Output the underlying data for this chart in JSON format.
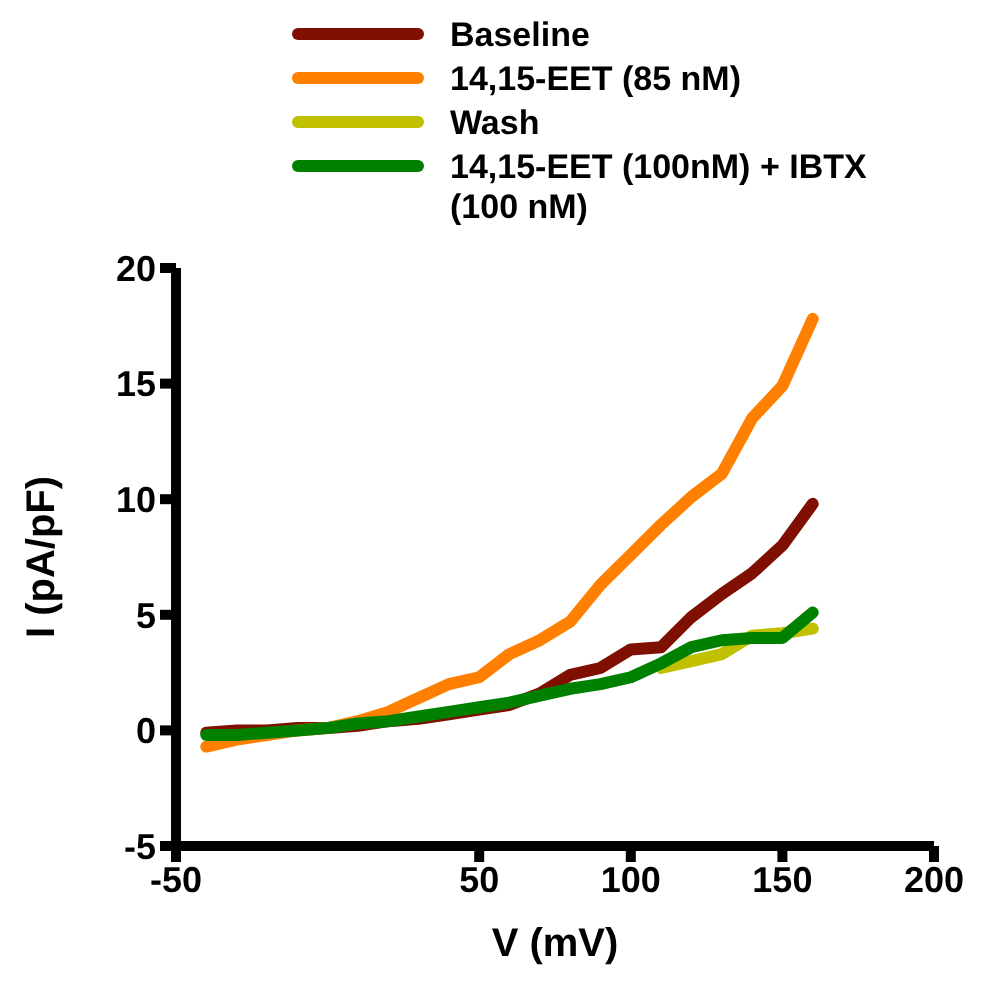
{
  "chart_data": {
    "type": "line",
    "xlabel": "V (mV)",
    "ylabel": "I (pA/pF)",
    "x": [
      -40,
      -30,
      -20,
      -10,
      0,
      10,
      20,
      30,
      40,
      50,
      60,
      70,
      80,
      90,
      100,
      110,
      120,
      130,
      140,
      150,
      160
    ],
    "series": [
      {
        "name": "Baseline",
        "color": "#7f0f00",
        "values": [
          -0.1,
          0,
          0,
          0.1,
          0.1,
          0.2,
          0.4,
          0.5,
          0.7,
          0.9,
          1.1,
          1.6,
          2.4,
          2.7,
          3.5,
          3.6,
          4.9,
          5.9,
          6.8,
          8.0,
          9.8
        ]
      },
      {
        "name": "14,15-EET (85 nM)",
        "color": "#ff8000",
        "values": [
          -0.7,
          -0.4,
          -0.2,
          0,
          0.1,
          0.4,
          0.8,
          1.4,
          2.0,
          2.3,
          3.3,
          3.9,
          4.7,
          6.3,
          7.6,
          8.9,
          10.1,
          11.1,
          13.5,
          14.9,
          17.8
        ]
      },
      {
        "name": "Wash",
        "color": "#c0c000",
        "values": [
          null,
          null,
          null,
          null,
          null,
          null,
          null,
          null,
          null,
          null,
          null,
          null,
          null,
          null,
          null,
          2.7,
          3.0,
          3.3,
          4.1,
          4.2,
          4.4
        ]
      },
      {
        "name": "14,15-EET (100nM) + IBTX (100 nM)",
        "color": "#008000",
        "values": [
          -0.2,
          -0.2,
          -0.1,
          0,
          0.1,
          0.3,
          0.4,
          0.6,
          0.8,
          1.0,
          1.2,
          1.5,
          1.8,
          2.0,
          2.3,
          2.9,
          3.6,
          3.9,
          4.0,
          4.0,
          5.1
        ]
      }
    ],
    "xlim": [
      -50,
      200
    ],
    "xticks": [
      -50,
      50,
      100,
      150,
      200
    ],
    "ylim": [
      -5,
      20
    ],
    "yticks": [
      -5,
      0,
      5,
      10,
      15,
      20
    ],
    "grid": false,
    "legend": "top",
    "marker": "none",
    "line_style": "solid"
  }
}
